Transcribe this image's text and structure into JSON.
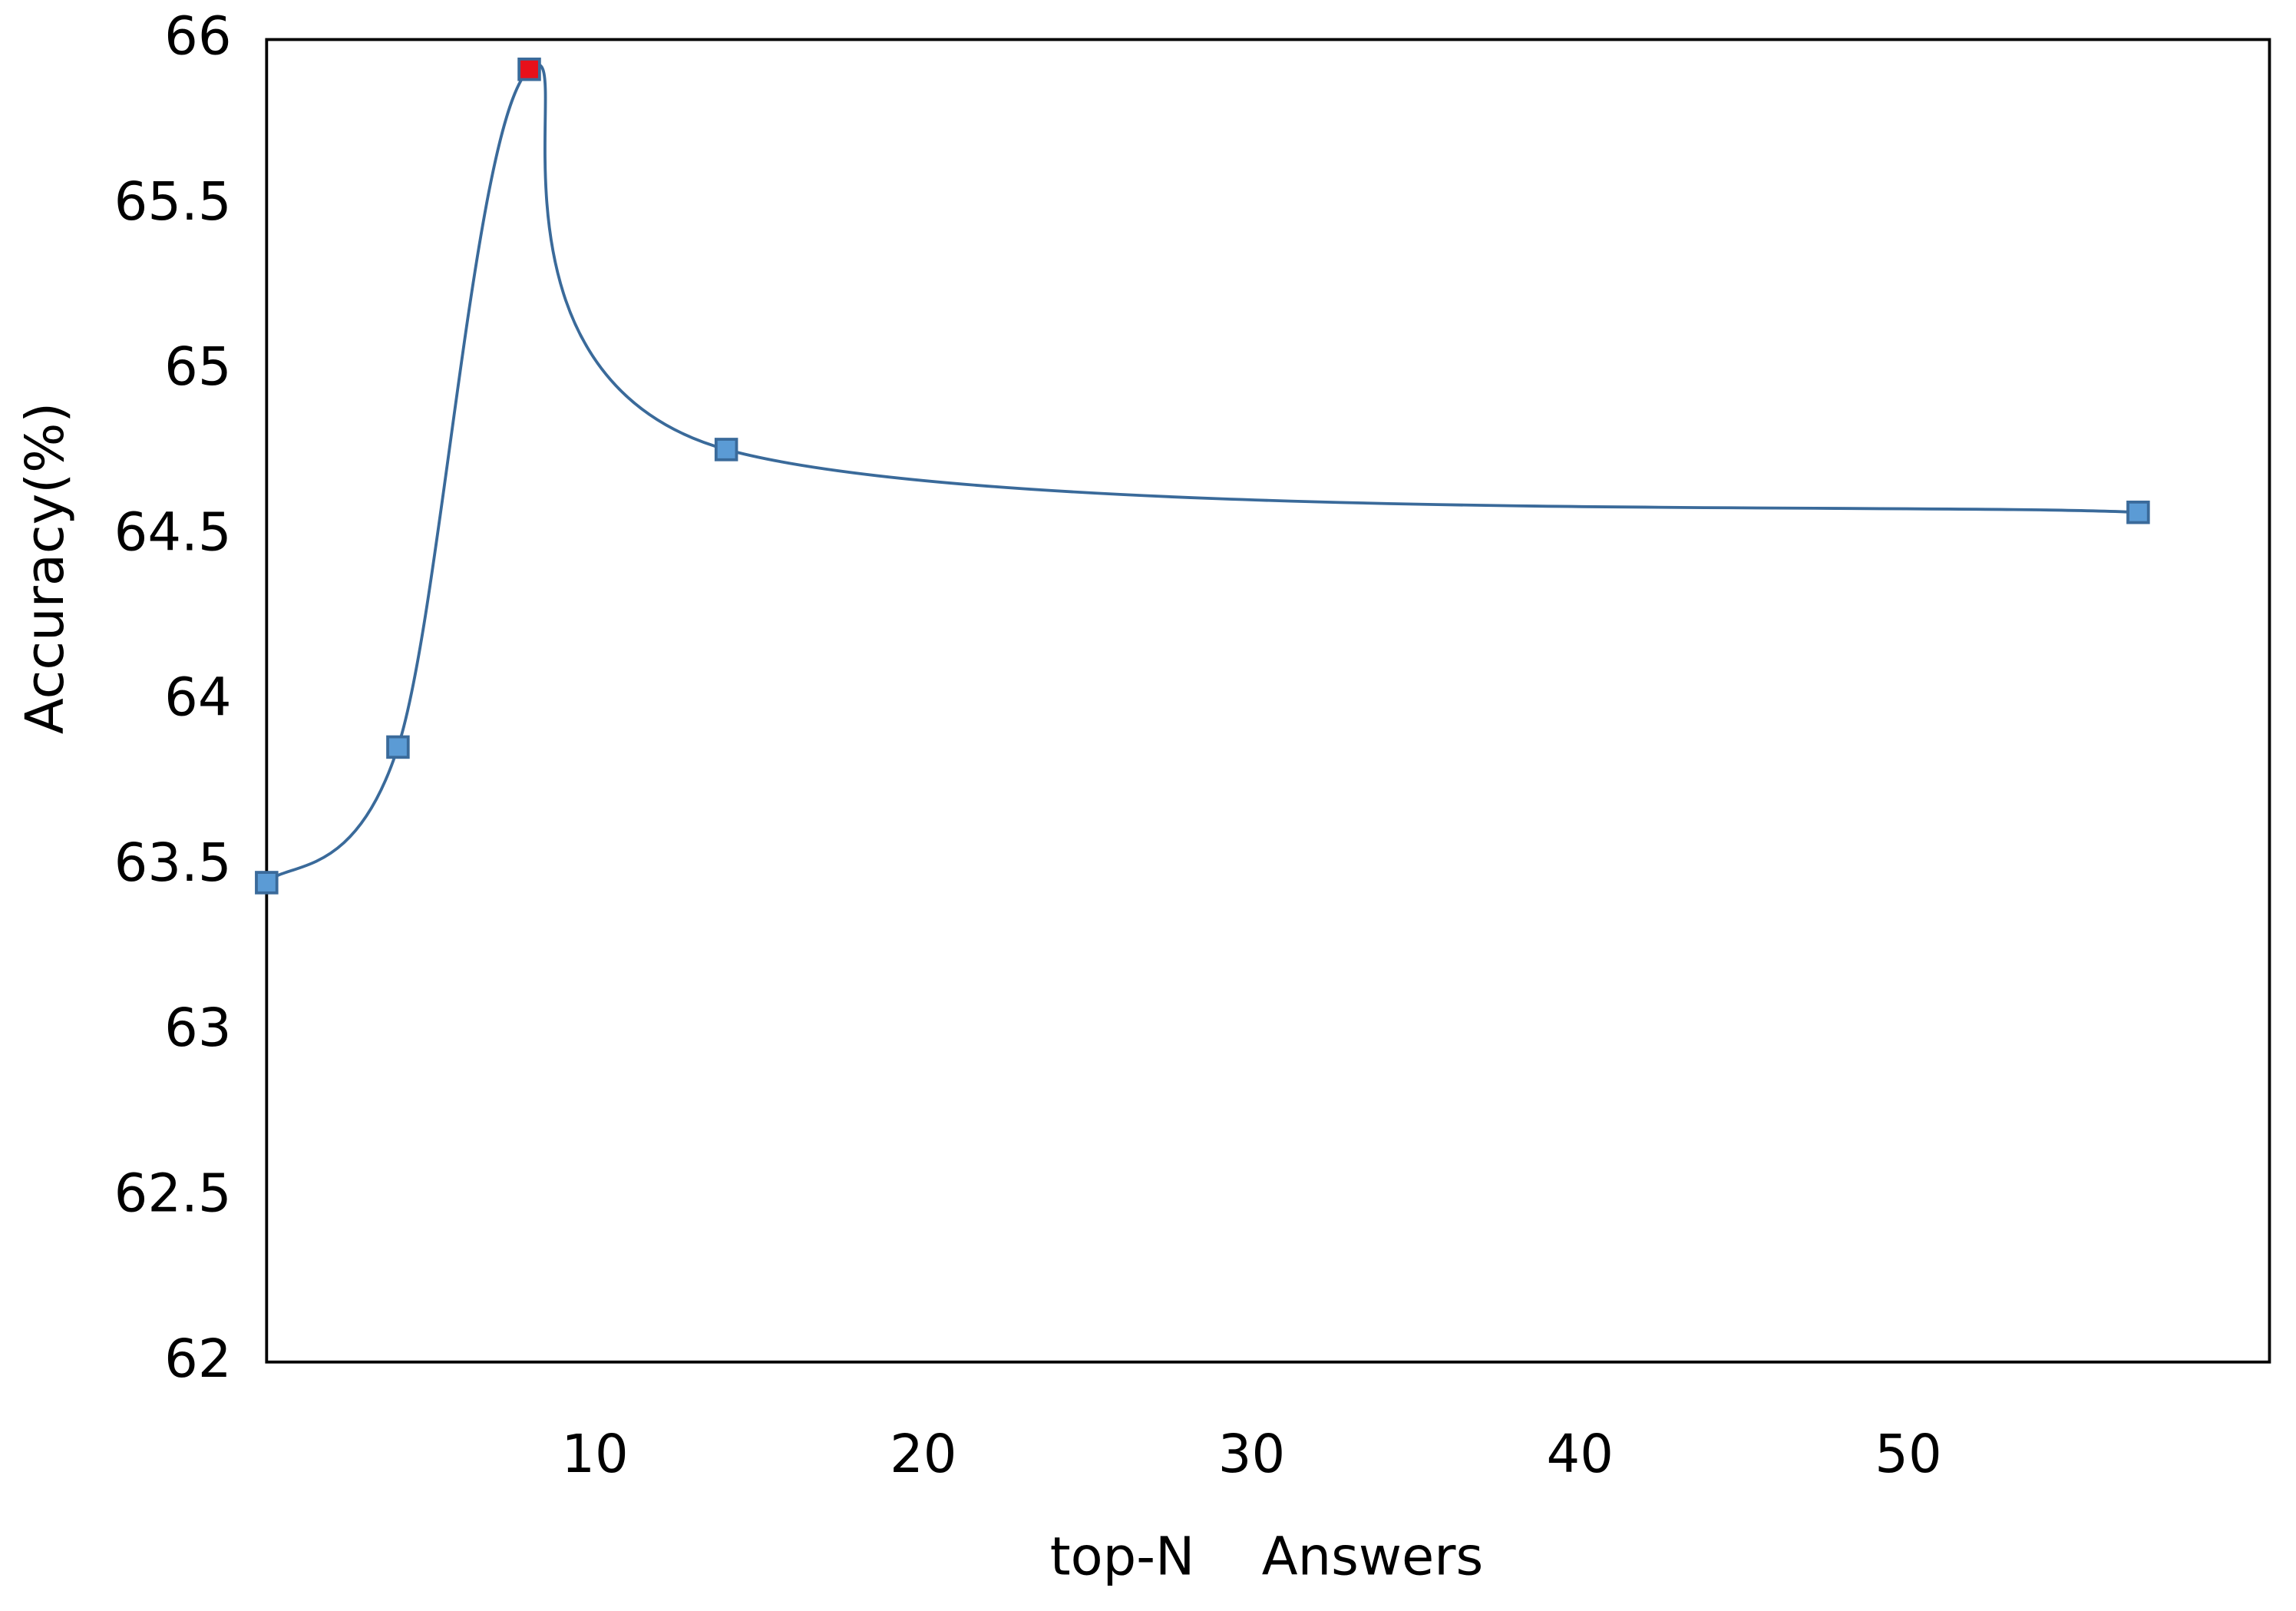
{
  "chart_data": {
    "type": "line",
    "x_label": "top-N    Answers",
    "y_label": "Accuracy(%)",
    "x": [
      0,
      4,
      8,
      14,
      57
    ],
    "series": [
      {
        "color": "#3a6a9a",
        "values": [
          63.45,
          63.86,
          65.91,
          64.76,
          64.57
        ],
        "marker_colors": [
          "#5b9bd5",
          "#5b9bd5",
          "#e8101a",
          "#5b9bd5",
          "#5b9bd5"
        ]
      }
    ],
    "xlim": [
      0,
      61
    ],
    "xticks": [
      10,
      20,
      30,
      40,
      50
    ],
    "ylim": [
      62,
      66
    ],
    "yticks": [
      62,
      62.5,
      63,
      63.5,
      64,
      64.5,
      65,
      65.5,
      66
    ],
    "grid": false
  }
}
